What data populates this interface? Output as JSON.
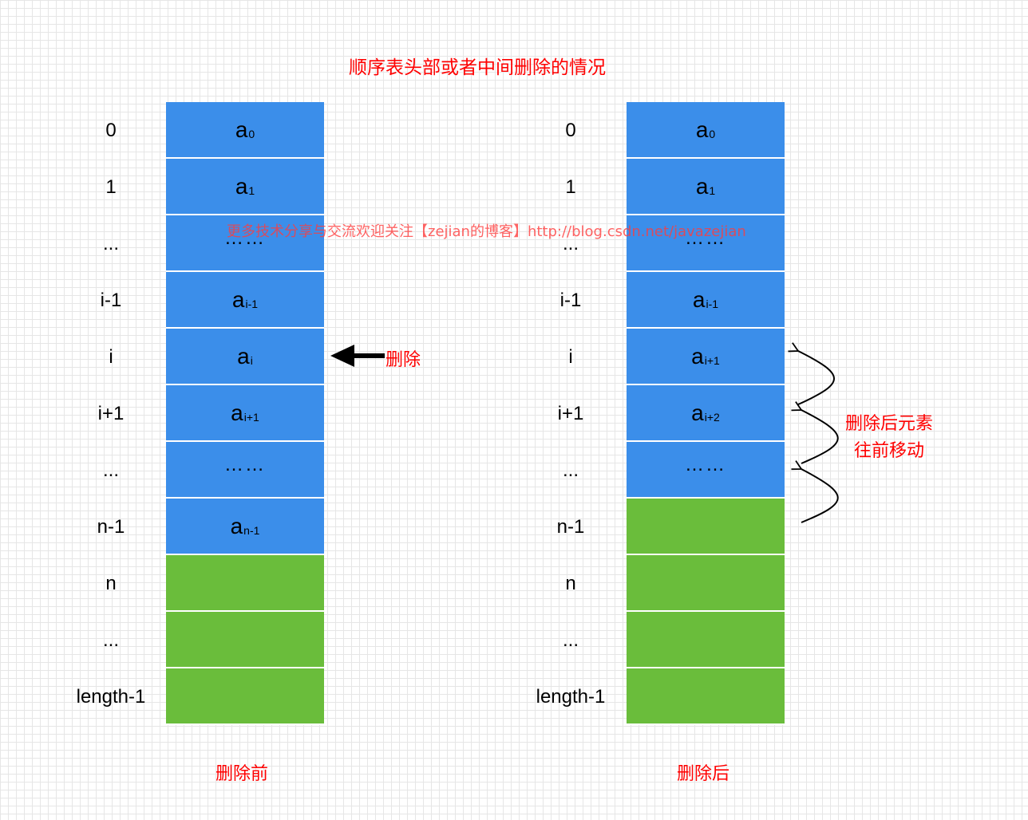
{
  "title": "顺序表头部或者中间删除的情况",
  "watermark": "更多技术分享与交流欢迎关注【zejian的博客】http://blog.csdn.net/javazejian",
  "index_labels": [
    "0",
    "1",
    "...",
    "i-1",
    "i",
    "i+1",
    "...",
    "n-1",
    "n",
    "...",
    "length-1"
  ],
  "before": {
    "caption": "删除前",
    "cells": [
      {
        "base": "a",
        "sub": "0",
        "color": "blue"
      },
      {
        "base": "a",
        "sub": "1",
        "color": "blue"
      },
      {
        "dots": "……",
        "color": "blue"
      },
      {
        "base": "a",
        "sub": "i-1",
        "color": "blue"
      },
      {
        "base": "a",
        "sub": "i",
        "color": "blue"
      },
      {
        "base": "a",
        "sub": "i+1",
        "color": "blue"
      },
      {
        "dots": "……",
        "color": "blue"
      },
      {
        "base": "a",
        "sub": "n-1",
        "color": "blue"
      },
      {
        "color": "green"
      },
      {
        "color": "green"
      },
      {
        "color": "green"
      }
    ]
  },
  "after": {
    "caption": "删除后",
    "cells": [
      {
        "base": "a",
        "sub": "0",
        "color": "blue"
      },
      {
        "base": "a",
        "sub": "1",
        "color": "blue"
      },
      {
        "dots": "……",
        "color": "blue"
      },
      {
        "base": "a",
        "sub": "i-1",
        "color": "blue"
      },
      {
        "base": "a",
        "sub": "i+1",
        "color": "blue"
      },
      {
        "base": "a",
        "sub": "i+2",
        "color": "blue"
      },
      {
        "dots": "……",
        "color": "blue"
      },
      {
        "color": "green"
      },
      {
        "color": "green"
      },
      {
        "color": "green"
      },
      {
        "color": "green"
      }
    ]
  },
  "delete_label": "删除",
  "move_label_line1": "删除后元素",
  "move_label_line2": "往前移动",
  "colors": {
    "blue": "#3b8eea",
    "green": "#6abd3b",
    "red": "#ff0000"
  }
}
